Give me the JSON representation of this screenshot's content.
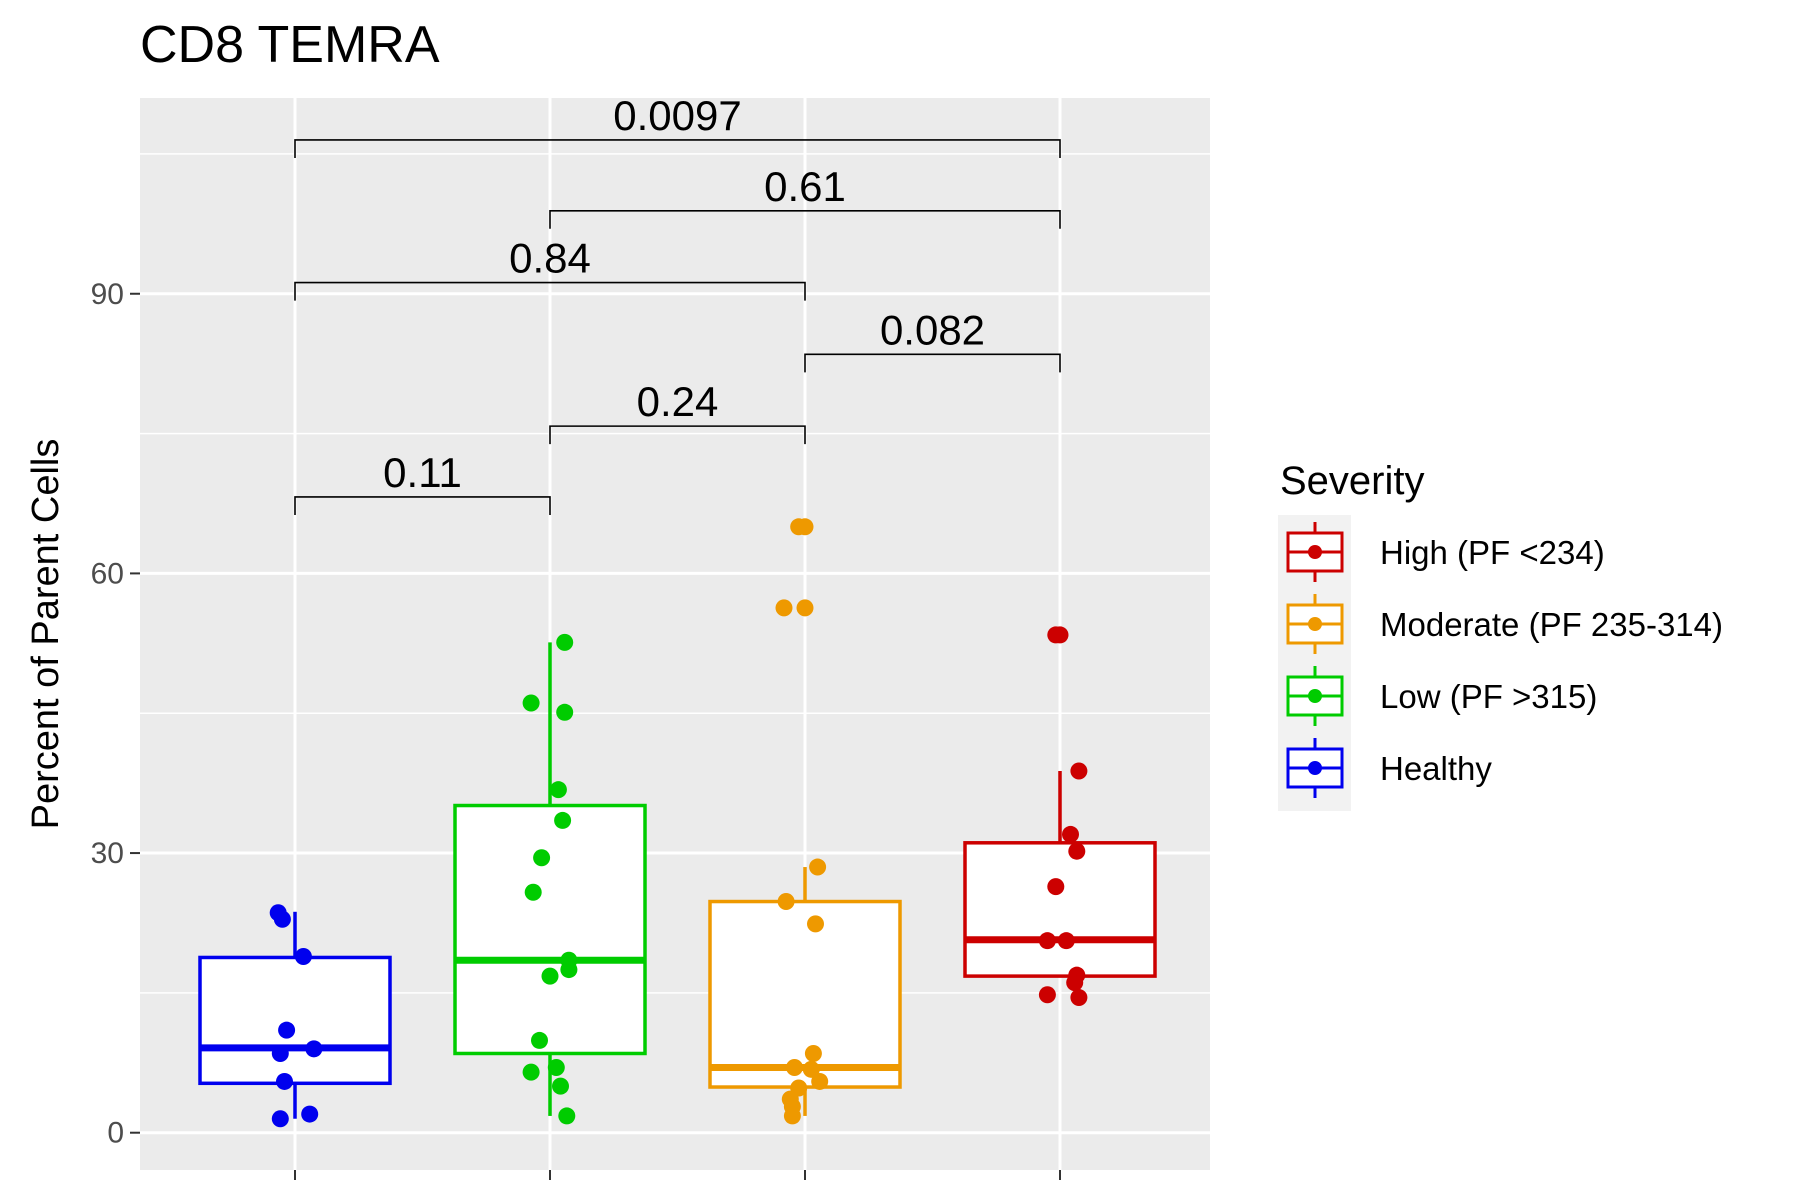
{
  "chart_data": {
    "type": "box",
    "title": "CD8 TEMRA",
    "xlabel": "",
    "ylabel": "Percent of Parent Cells",
    "ylim": [
      -4,
      111
    ],
    "yticks": [
      0,
      30,
      60,
      90
    ],
    "grid": true,
    "legend": {
      "title": "Severity",
      "position": "right",
      "entries": [
        {
          "label": "High (PF <234)",
          "color": "#cc0000"
        },
        {
          "label": "Moderate (PF 235-314)",
          "color": "#ee9900"
        },
        {
          "label": "Low (PF >315)",
          "color": "#00cc00"
        },
        {
          "label": "Healthy",
          "color": "#0000ee"
        }
      ]
    },
    "groups": [
      {
        "name": "Healthy",
        "color": "#0000ee",
        "whisker_low": 1.5,
        "q1": 5.3,
        "median": 9.1,
        "q3": 18.8,
        "whisker_high": 23.7,
        "points": [
          [
            -0.08,
            23.6
          ],
          [
            -0.06,
            22.9
          ],
          [
            0.04,
            18.9
          ],
          [
            -0.04,
            11.0
          ],
          [
            -0.07,
            8.5
          ],
          [
            0.09,
            9.0
          ],
          [
            -0.05,
            5.5
          ],
          [
            0.07,
            2.0
          ],
          [
            -0.07,
            1.5
          ]
        ]
      },
      {
        "name": "Low (PF >315)",
        "color": "#00cc00",
        "whisker_low": 1.8,
        "q1": 8.5,
        "median": 18.5,
        "q3": 35.1,
        "whisker_high": 52.6,
        "points": [
          [
            0.07,
            52.6
          ],
          [
            -0.09,
            46.1
          ],
          [
            0.07,
            45.1
          ],
          [
            0.04,
            36.8
          ],
          [
            0.06,
            33.5
          ],
          [
            -0.04,
            29.5
          ],
          [
            -0.08,
            25.8
          ],
          [
            0.09,
            18.5
          ],
          [
            0.09,
            17.5
          ],
          [
            0.0,
            16.8
          ],
          [
            -0.05,
            9.9
          ],
          [
            0.03,
            7.0
          ],
          [
            -0.09,
            6.5
          ],
          [
            0.05,
            5.0
          ],
          [
            0.08,
            1.8
          ]
        ]
      },
      {
        "name": "Moderate (PF 235-314)",
        "color": "#ee9900",
        "whisker_low": 1.8,
        "q1": 4.9,
        "median": 7.0,
        "q3": 24.8,
        "whisker_high": 28.5,
        "points": [
          [
            -0.03,
            65.0
          ],
          [
            0.0,
            65.0
          ],
          [
            -0.1,
            56.3
          ],
          [
            0.0,
            56.3
          ],
          [
            0.06,
            28.5
          ],
          [
            -0.09,
            24.8
          ],
          [
            0.05,
            22.4
          ],
          [
            0.04,
            8.5
          ],
          [
            -0.05,
            7.0
          ],
          [
            0.03,
            6.8
          ],
          [
            0.07,
            5.5
          ],
          [
            -0.03,
            4.8
          ],
          [
            -0.07,
            3.6
          ],
          [
            -0.06,
            2.8
          ],
          [
            -0.06,
            1.8
          ]
        ]
      },
      {
        "name": "High (PF <234)",
        "color": "#cc0000",
        "whisker_low": 16.8,
        "q1": 16.8,
        "median": 20.7,
        "q3": 31.1,
        "whisker_high": 38.8,
        "points": [
          [
            -0.02,
            53.4
          ],
          [
            0.0,
            53.4
          ],
          [
            0.09,
            38.8
          ],
          [
            0.05,
            32.0
          ],
          [
            0.08,
            30.2
          ],
          [
            -0.02,
            26.4
          ],
          [
            -0.06,
            20.6
          ],
          [
            0.03,
            20.6
          ],
          [
            0.08,
            16.9
          ],
          [
            0.07,
            16.1
          ],
          [
            -0.06,
            14.8
          ],
          [
            0.09,
            14.5
          ]
        ]
      }
    ],
    "comparisons": [
      {
        "from": "Healthy",
        "to": "Low (PF >315)",
        "label": "0.11",
        "y": 68.2
      },
      {
        "from": "Low (PF >315)",
        "to": "Moderate (PF 235-314)",
        "label": "0.24",
        "y": 75.8
      },
      {
        "from": "Moderate (PF 235-314)",
        "to": "High (PF <234)",
        "label": "0.082",
        "y": 83.5
      },
      {
        "from": "Healthy",
        "to": "Moderate (PF 235-314)",
        "label": "0.84",
        "y": 91.2
      },
      {
        "from": "Low (PF >315)",
        "to": "High (PF <234)",
        "label": "0.61",
        "y": 98.9
      },
      {
        "from": "Healthy",
        "to": "High (PF <234)",
        "label": "0.0097",
        "y": 106.5
      }
    ]
  }
}
